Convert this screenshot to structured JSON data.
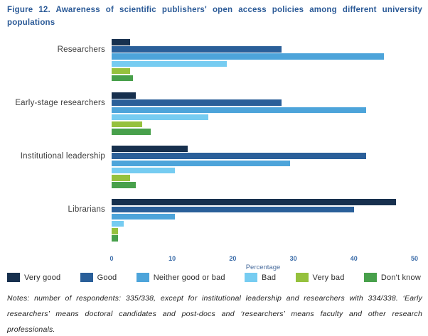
{
  "title": "Figure 12. Awareness of scientific publishers' open access policies among different university populations",
  "notes": "Notes: number of respondents: 335/338, except for institutional leadership and researchers with 334/338. ‘Early researchers’ means doctoral candidates and post-docs and ‘researchers’ means faculty and other research professionals.",
  "chart_data": {
    "type": "bar",
    "orientation": "horizontal",
    "title": "Figure 12. Awareness of scientific publishers' open access policies among different university populations",
    "categories": [
      "Researchers",
      "Early-stage researchers",
      "Institutional leadership",
      "Librarians"
    ],
    "series": [
      {
        "name": "Very good",
        "color": "#17304e",
        "values": [
          3,
          4,
          12.5,
          47
        ]
      },
      {
        "name": "Good",
        "color": "#2a5f99",
        "values": [
          28,
          28,
          42,
          40
        ]
      },
      {
        "name": "Neither good or bad",
        "color": "#4da4da",
        "values": [
          45,
          42,
          29.5,
          10.5
        ]
      },
      {
        "name": "Bad",
        "color": "#76ccf1",
        "values": [
          19,
          16,
          10.5,
          2
        ]
      },
      {
        "name": "Very bad",
        "color": "#95c13d",
        "values": [
          3,
          5,
          3,
          1
        ]
      },
      {
        "name": "Don't know",
        "color": "#48a04b",
        "values": [
          3.5,
          6.5,
          4,
          1
        ]
      }
    ],
    "xlabel": "Percentage",
    "xlim": [
      0,
      50
    ],
    "xticks": [
      0,
      10,
      20,
      30,
      40,
      50
    ],
    "grid": false,
    "legend_position": "bottom"
  }
}
